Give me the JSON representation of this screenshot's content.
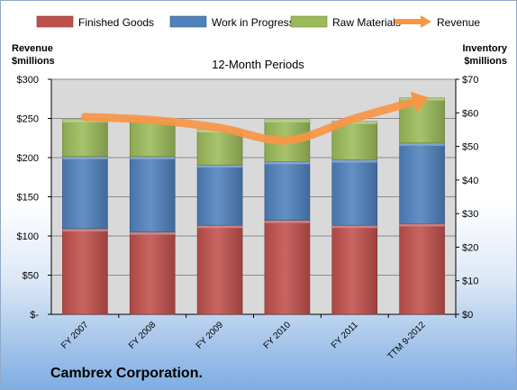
{
  "chart_data": {
    "type": "bar",
    "stacked": true,
    "subtitle": "12-Month Periods",
    "categories": [
      "FY 2007",
      "FY 2008",
      "FY 2009",
      "FY 2010",
      "FY 2011",
      "TTM 9-2012"
    ],
    "series": [
      {
        "name": "Finished Goods",
        "axis": "right",
        "color": "#c0504d",
        "values": [
          25.5,
          24.5,
          26.5,
          28.0,
          26.5,
          27.0
        ]
      },
      {
        "name": "Work in Progress",
        "axis": "right",
        "color": "#4f81bd",
        "values": [
          21.5,
          22.5,
          18.0,
          17.5,
          19.5,
          24.0
        ]
      },
      {
        "name": "Raw Materials",
        "axis": "right",
        "color": "#9bbb59",
        "values": [
          11.0,
          11.0,
          10.5,
          12.5,
          11.5,
          13.5
        ]
      },
      {
        "name": "Revenue",
        "type": "line",
        "axis": "left",
        "color": "#f79646",
        "values": [
          252,
          248,
          238,
          222,
          250,
          274
        ]
      }
    ],
    "y_left": {
      "label": [
        "Revenue",
        "$millions"
      ],
      "ylim": [
        0,
        300
      ],
      "ticks": [
        "$-",
        "$50",
        "$100",
        "$150",
        "$200",
        "$250",
        "$300"
      ]
    },
    "y_right": {
      "label": [
        "Inventory",
        "$millions"
      ],
      "ylim": [
        0,
        70
      ],
      "ticks": [
        "$0",
        "$10",
        "$20",
        "$30",
        "$40",
        "$50",
        "$60",
        "$70"
      ]
    },
    "grid": true,
    "legend": "top"
  },
  "company": "Cambrex Corporation."
}
